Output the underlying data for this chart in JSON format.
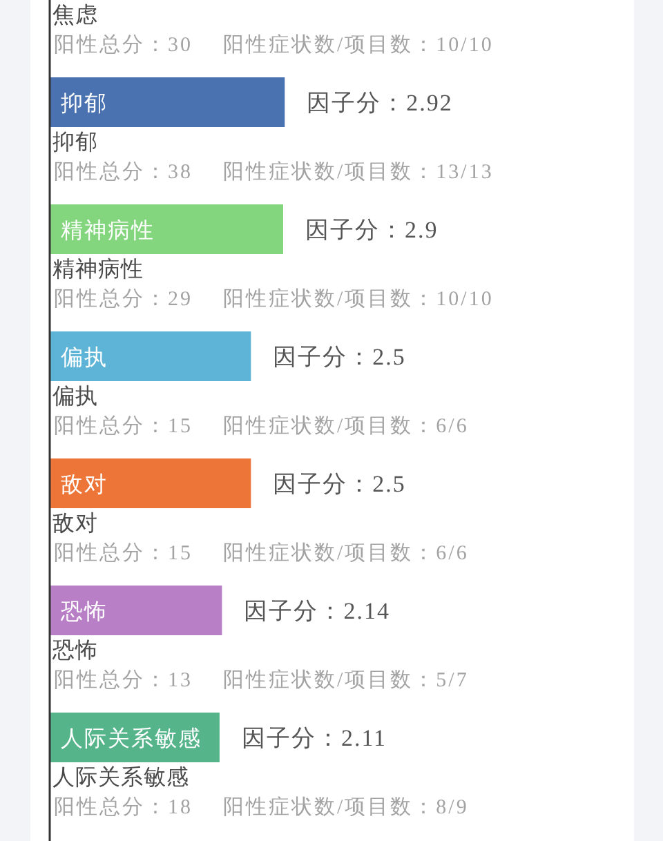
{
  "chart_data": {
    "type": "bar",
    "orientation": "horizontal",
    "categories": [
      "焦虑",
      "抑郁",
      "精神病性",
      "偏执",
      "敌对",
      "恐怖",
      "人际关系敏感"
    ],
    "values": [
      null,
      2.92,
      2.9,
      2.5,
      2.5,
      2.14,
      2.11
    ],
    "colors": [
      null,
      "#4a72b0",
      "#84d67e",
      "#5db4d6",
      "#ee7538",
      "#b87ec6",
      "#55b48a"
    ],
    "value_labels": [
      null,
      "因子分：2.92",
      "因子分：2.9",
      "因子分：2.5",
      "因子分：2.5",
      "因子分：2.14",
      "因子分：2.11"
    ],
    "tick_labels": "y",
    "annotations": [
      "阳性总分：30",
      "阳性症状数/项目数：10/10",
      "阳性总分：38",
      "阳性症状数/项目数：13/13",
      "阳性总分：29",
      "阳性症状数/项目数：10/10",
      "阳性总分：15",
      "阳性症状数/项目数：6/6",
      "阳性总分：15",
      "阳性症状数/项目数：6/6",
      "阳性总分：13",
      "阳性症状数/项目数：5/7",
      "阳性总分：18",
      "阳性症状数/项目数：8/9"
    ]
  }
}
